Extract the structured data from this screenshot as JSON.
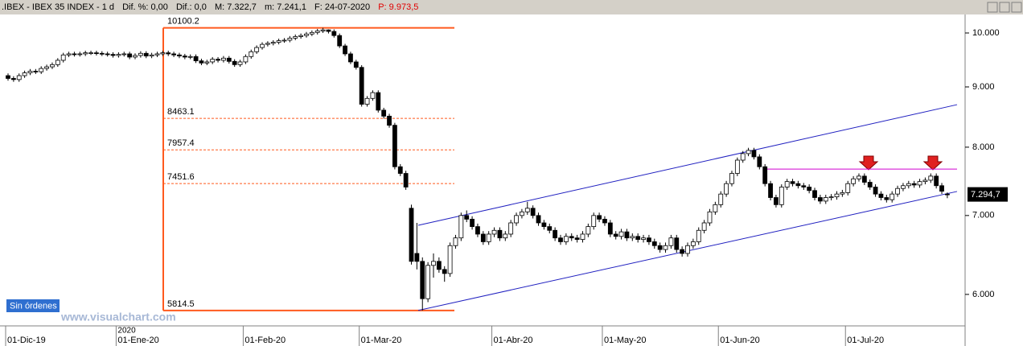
{
  "chart_data": {
    "type": "candlestick",
    "title": ".IBEX - IBEX 35 INDEX - 1 d",
    "stats": [
      "Dif. %: 0,00",
      "Dif.: 0,0",
      "M: 7.322,7",
      "m: 7.241,1",
      "F: 24-07-2020"
    ],
    "price_info": "P: 9.973,5",
    "year_label": "2020",
    "button": "Sin órdenes",
    "watermark": "www.visualchart.com",
    "log_scale": true,
    "up_color": "#ffffff",
    "down_color": "#000000",
    "ylim": [
      5642,
      10368
    ],
    "yticks": [
      {
        "value": 10000,
        "label": "10.000"
      },
      {
        "value": 9000,
        "label": "9.000"
      },
      {
        "value": 8000,
        "label": "8.000"
      },
      {
        "value": 7000,
        "label": "7.000"
      },
      {
        "value": 6000,
        "label": "6.000"
      }
    ],
    "xticks": [
      {
        "value": 0,
        "label": "01-Dic-19"
      },
      {
        "value": 20,
        "label": "01-Ene-20"
      },
      {
        "value": 43,
        "label": "01-Feb-20"
      },
      {
        "value": 64,
        "label": "01-Mar-20"
      },
      {
        "value": 88,
        "label": "01-Abr-20"
      },
      {
        "value": 108,
        "label": "01-May-20"
      },
      {
        "value": 129,
        "label": "01-Jun-20"
      },
      {
        "value": 152,
        "label": "01-Jul-20"
      }
    ],
    "fib_levels": [
      10100.2,
      8463.1,
      7957.4,
      7451.6,
      5814.5
    ],
    "fib_color": "#ff5a1e",
    "channel_upper": [
      6867,
      8693
    ],
    "channel_lower": [
      5815,
      7337
    ],
    "channel_color": "#2020c0",
    "resistance": 7665,
    "resistance_color": "#d000d0",
    "last_price_label": "7.294,7",
    "candles": [
      [
        9200,
        9240,
        9110,
        9150
      ],
      [
        9150,
        9190,
        9090,
        9130
      ],
      [
        9130,
        9240,
        9090,
        9200
      ],
      [
        9200,
        9290,
        9160,
        9250
      ],
      [
        9250,
        9320,
        9210,
        9280
      ],
      [
        9280,
        9320,
        9230,
        9270
      ],
      [
        9270,
        9370,
        9230,
        9330
      ],
      [
        9330,
        9400,
        9290,
        9360
      ],
      [
        9360,
        9440,
        9320,
        9400
      ],
      [
        9400,
        9520,
        9360,
        9480
      ],
      [
        9480,
        9620,
        9440,
        9580
      ],
      [
        9580,
        9640,
        9540,
        9600
      ],
      [
        9600,
        9640,
        9550,
        9590
      ],
      [
        9590,
        9640,
        9550,
        9600
      ],
      [
        9600,
        9660,
        9560,
        9620
      ],
      [
        9620,
        9660,
        9580,
        9620
      ],
      [
        9620,
        9660,
        9570,
        9610
      ],
      [
        9610,
        9650,
        9560,
        9600
      ],
      [
        9600,
        9640,
        9550,
        9590
      ],
      [
        9590,
        9630,
        9530,
        9570
      ],
      [
        9570,
        9630,
        9530,
        9590
      ],
      [
        9590,
        9640,
        9550,
        9600
      ],
      [
        9600,
        9640,
        9500,
        9540
      ],
      [
        9540,
        9610,
        9500,
        9570
      ],
      [
        9570,
        9650,
        9530,
        9610
      ],
      [
        9610,
        9650,
        9520,
        9560
      ],
      [
        9560,
        9620,
        9520,
        9580
      ],
      [
        9580,
        9640,
        9540,
        9600
      ],
      [
        9600,
        9660,
        9560,
        9620
      ],
      [
        9620,
        9660,
        9560,
        9600
      ],
      [
        9600,
        9640,
        9540,
        9580
      ],
      [
        9580,
        9620,
        9520,
        9560
      ],
      [
        9560,
        9600,
        9500,
        9540
      ],
      [
        9540,
        9590,
        9500,
        9550
      ],
      [
        9550,
        9590,
        9430,
        9470
      ],
      [
        9470,
        9510,
        9390,
        9430
      ],
      [
        9430,
        9490,
        9390,
        9450
      ],
      [
        9450,
        9540,
        9410,
        9500
      ],
      [
        9500,
        9540,
        9440,
        9480
      ],
      [
        9480,
        9560,
        9440,
        9520
      ],
      [
        9520,
        9560,
        9420,
        9460
      ],
      [
        9460,
        9500,
        9360,
        9400
      ],
      [
        9400,
        9490,
        9360,
        9450
      ],
      [
        9450,
        9590,
        9410,
        9550
      ],
      [
        9550,
        9680,
        9510,
        9640
      ],
      [
        9640,
        9760,
        9600,
        9720
      ],
      [
        9720,
        9820,
        9680,
        9780
      ],
      [
        9780,
        9840,
        9740,
        9800
      ],
      [
        9800,
        9860,
        9760,
        9820
      ],
      [
        9820,
        9890,
        9780,
        9850
      ],
      [
        9850,
        9900,
        9810,
        9860
      ],
      [
        9860,
        9940,
        9820,
        9900
      ],
      [
        9900,
        9970,
        9860,
        9930
      ],
      [
        9930,
        9990,
        9890,
        9950
      ],
      [
        9950,
        10020,
        9910,
        9980
      ],
      [
        9980,
        10050,
        9940,
        10010
      ],
      [
        10010,
        10080,
        9970,
        10040
      ],
      [
        10040,
        10100.2,
        10000,
        10060
      ],
      [
        10060,
        10070,
        9990,
        10030
      ],
      [
        10030,
        10070,
        9910,
        9950
      ],
      [
        9950,
        9990,
        9710,
        9750
      ],
      [
        9750,
        9790,
        9560,
        9600
      ],
      [
        9600,
        9640,
        9410,
        9450
      ],
      [
        9450,
        9490,
        9310,
        9350
      ],
      [
        9350,
        9390,
        8660,
        8700
      ],
      [
        8700,
        8840,
        8660,
        8800
      ],
      [
        8800,
        8940,
        8760,
        8900
      ],
      [
        8900,
        8940,
        8560,
        8600
      ],
      [
        8600,
        8640,
        8460,
        8500
      ],
      [
        8500,
        8540,
        8310,
        8350
      ],
      [
        8350,
        8390,
        7660,
        7700
      ],
      [
        7700,
        7740,
        7560,
        7600
      ],
      [
        7600,
        7640,
        7360,
        7400
      ],
      [
        7100,
        7150,
        6360,
        6400
      ],
      [
        6500,
        6900,
        6300,
        6400
      ],
      [
        6400,
        6450,
        5814.5,
        5950
      ],
      [
        5950,
        6390,
        5910,
        6350
      ],
      [
        6350,
        6500,
        6200,
        6400
      ],
      [
        6400,
        6450,
        6260,
        6300
      ],
      [
        6300,
        6340,
        6150,
        6250
      ],
      [
        6250,
        6640,
        6210,
        6600
      ],
      [
        6600,
        6740,
        6560,
        6700
      ],
      [
        6700,
        7040,
        6660,
        7000
      ],
      [
        7000,
        7070,
        6910,
        6950
      ],
      [
        6950,
        6990,
        6810,
        6850
      ],
      [
        6850,
        6890,
        6710,
        6750
      ],
      [
        6750,
        6790,
        6610,
        6650
      ],
      [
        6650,
        6790,
        6610,
        6750
      ],
      [
        6750,
        6840,
        6710,
        6800
      ],
      [
        6800,
        6840,
        6660,
        6700
      ],
      [
        6700,
        6790,
        6660,
        6750
      ],
      [
        6750,
        6940,
        6710,
        6900
      ],
      [
        6900,
        7040,
        6860,
        7000
      ],
      [
        7000,
        7090,
        6960,
        7050
      ],
      [
        7050,
        7190,
        7010,
        7100
      ],
      [
        7100,
        7140,
        6960,
        7000
      ],
      [
        7000,
        7040,
        6860,
        6900
      ],
      [
        6900,
        6940,
        6810,
        6850
      ],
      [
        6850,
        6890,
        6760,
        6800
      ],
      [
        6800,
        6840,
        6660,
        6700
      ],
      [
        6700,
        6740,
        6610,
        6650
      ],
      [
        6650,
        6760,
        6610,
        6720
      ],
      [
        6720,
        6760,
        6660,
        6700
      ],
      [
        6700,
        6740,
        6640,
        6680
      ],
      [
        6680,
        6790,
        6640,
        6750
      ],
      [
        6750,
        6890,
        6710,
        6850
      ],
      [
        6850,
        7040,
        6810,
        7000
      ],
      [
        7000,
        7040,
        6910,
        6950
      ],
      [
        6950,
        6990,
        6860,
        6900
      ],
      [
        6900,
        6940,
        6710,
        6750
      ],
      [
        6750,
        6790,
        6680,
        6720
      ],
      [
        6720,
        6820,
        6680,
        6780
      ],
      [
        6780,
        6820,
        6660,
        6700
      ],
      [
        6700,
        6760,
        6660,
        6720
      ],
      [
        6720,
        6760,
        6640,
        6680
      ],
      [
        6680,
        6740,
        6640,
        6700
      ],
      [
        6700,
        6740,
        6610,
        6650
      ],
      [
        6650,
        6690,
        6560,
        6600
      ],
      [
        6600,
        6640,
        6510,
        6550
      ],
      [
        6550,
        6640,
        6510,
        6600
      ],
      [
        6600,
        6740,
        6560,
        6700
      ],
      [
        6700,
        6740,
        6510,
        6550
      ],
      [
        6550,
        6590,
        6460,
        6500
      ],
      [
        6500,
        6640,
        6460,
        6600
      ],
      [
        6600,
        6690,
        6560,
        6650
      ],
      [
        6650,
        6840,
        6610,
        6800
      ],
      [
        6800,
        6940,
        6760,
        6900
      ],
      [
        6900,
        7090,
        6860,
        7050
      ],
      [
        7050,
        7190,
        7010,
        7150
      ],
      [
        7150,
        7340,
        7110,
        7300
      ],
      [
        7300,
        7490,
        7260,
        7450
      ],
      [
        7450,
        7640,
        7410,
        7600
      ],
      [
        7600,
        7840,
        7560,
        7800
      ],
      [
        7800,
        7940,
        7760,
        7900
      ],
      [
        7900,
        7990,
        7860,
        7950
      ],
      [
        7950,
        7990,
        7810,
        7850
      ],
      [
        7850,
        7890,
        7660,
        7700
      ],
      [
        7700,
        7740,
        7410,
        7450
      ],
      [
        7450,
        7490,
        7210,
        7250
      ],
      [
        7250,
        7290,
        7110,
        7150
      ],
      [
        7150,
        7440,
        7110,
        7400
      ],
      [
        7400,
        7520,
        7360,
        7480
      ],
      [
        7480,
        7520,
        7410,
        7450
      ],
      [
        7450,
        7490,
        7380,
        7420
      ],
      [
        7420,
        7460,
        7360,
        7400
      ],
      [
        7400,
        7440,
        7310,
        7350
      ],
      [
        7350,
        7390,
        7210,
        7250
      ],
      [
        7250,
        7290,
        7160,
        7200
      ],
      [
        7200,
        7290,
        7160,
        7250
      ],
      [
        7250,
        7300,
        7210,
        7260
      ],
      [
        7260,
        7340,
        7220,
        7300
      ],
      [
        7300,
        7360,
        7260,
        7320
      ],
      [
        7320,
        7490,
        7280,
        7450
      ],
      [
        7450,
        7560,
        7410,
        7520
      ],
      [
        7520,
        7600,
        7480,
        7560
      ],
      [
        7560,
        7600,
        7430,
        7470
      ],
      [
        7470,
        7510,
        7360,
        7400
      ],
      [
        7400,
        7440,
        7260,
        7300
      ],
      [
        7300,
        7340,
        7210,
        7250
      ],
      [
        7250,
        7290,
        7180,
        7220
      ],
      [
        7220,
        7340,
        7180,
        7300
      ],
      [
        7300,
        7420,
        7260,
        7380
      ],
      [
        7380,
        7460,
        7340,
        7420
      ],
      [
        7420,
        7490,
        7380,
        7450
      ],
      [
        7450,
        7490,
        7390,
        7430
      ],
      [
        7430,
        7520,
        7390,
        7480
      ],
      [
        7480,
        7540,
        7440,
        7500
      ],
      [
        7500,
        7600,
        7460,
        7560
      ],
      [
        7560,
        7600,
        7380,
        7420
      ],
      [
        7420,
        7460,
        7300,
        7340
      ],
      [
        7300,
        7322.7,
        7241.1,
        7294.7
      ]
    ]
  }
}
